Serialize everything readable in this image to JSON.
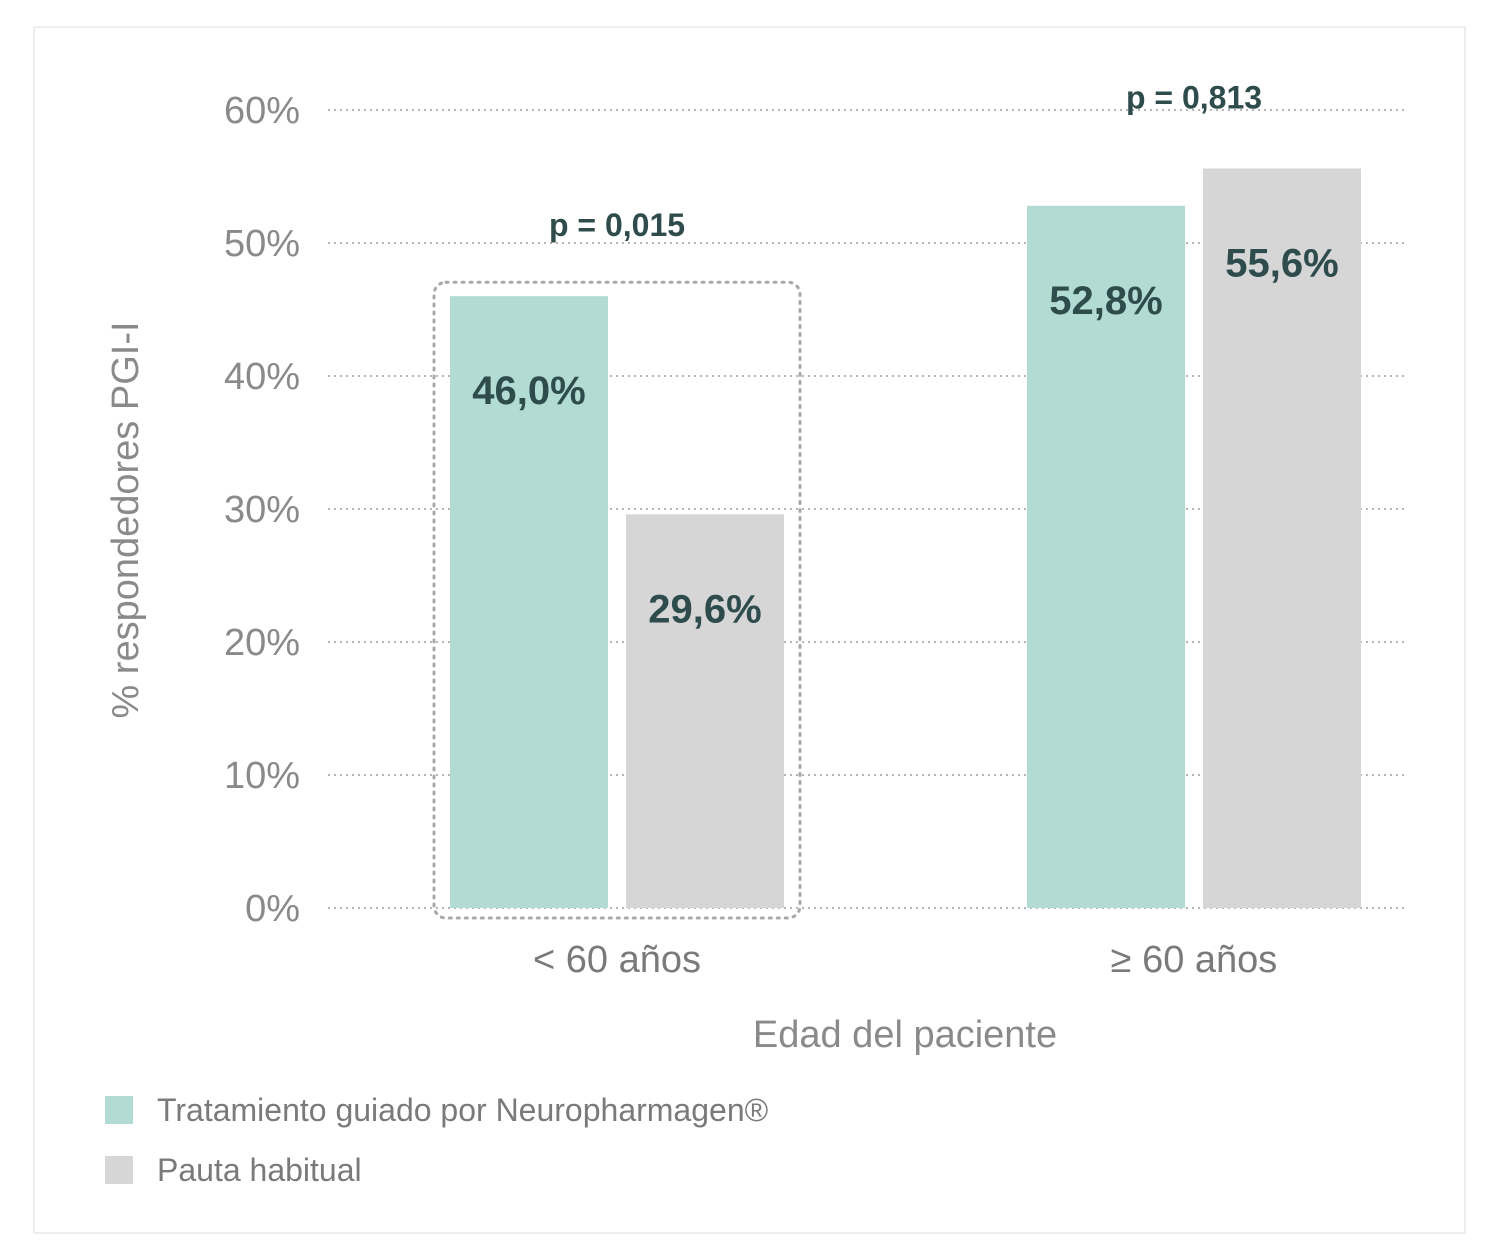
{
  "chart_data": {
    "type": "bar",
    "categories": [
      "< 60 años",
      "≥ 60 años"
    ],
    "series": [
      {
        "name": "Tratamiento guiado por Neuropharmagen®",
        "color": "#b2dbd3",
        "values": [
          46.0,
          52.8
        ],
        "labels": [
          "46,0%",
          "52,8%"
        ]
      },
      {
        "name": "Pauta habitual",
        "color": "#d6d6d6",
        "values": [
          29.6,
          55.6
        ],
        "labels": [
          "29,6%",
          "55,6%"
        ]
      }
    ],
    "p_values": [
      "p = 0,015",
      "p = 0,813"
    ],
    "xlabel": "Edad del paciente",
    "ylabel": "% respondedores PGI-I",
    "ylim": [
      0,
      60
    ],
    "yticks": [
      0,
      10,
      20,
      30,
      40,
      50,
      60
    ],
    "ytick_labels": [
      "0%",
      "10%",
      "20%",
      "30%",
      "40%",
      "50%",
      "60%"
    ],
    "grid": "horizontal dotted",
    "highlighted_group": "< 60 años",
    "legend_position": "bottom-left"
  }
}
